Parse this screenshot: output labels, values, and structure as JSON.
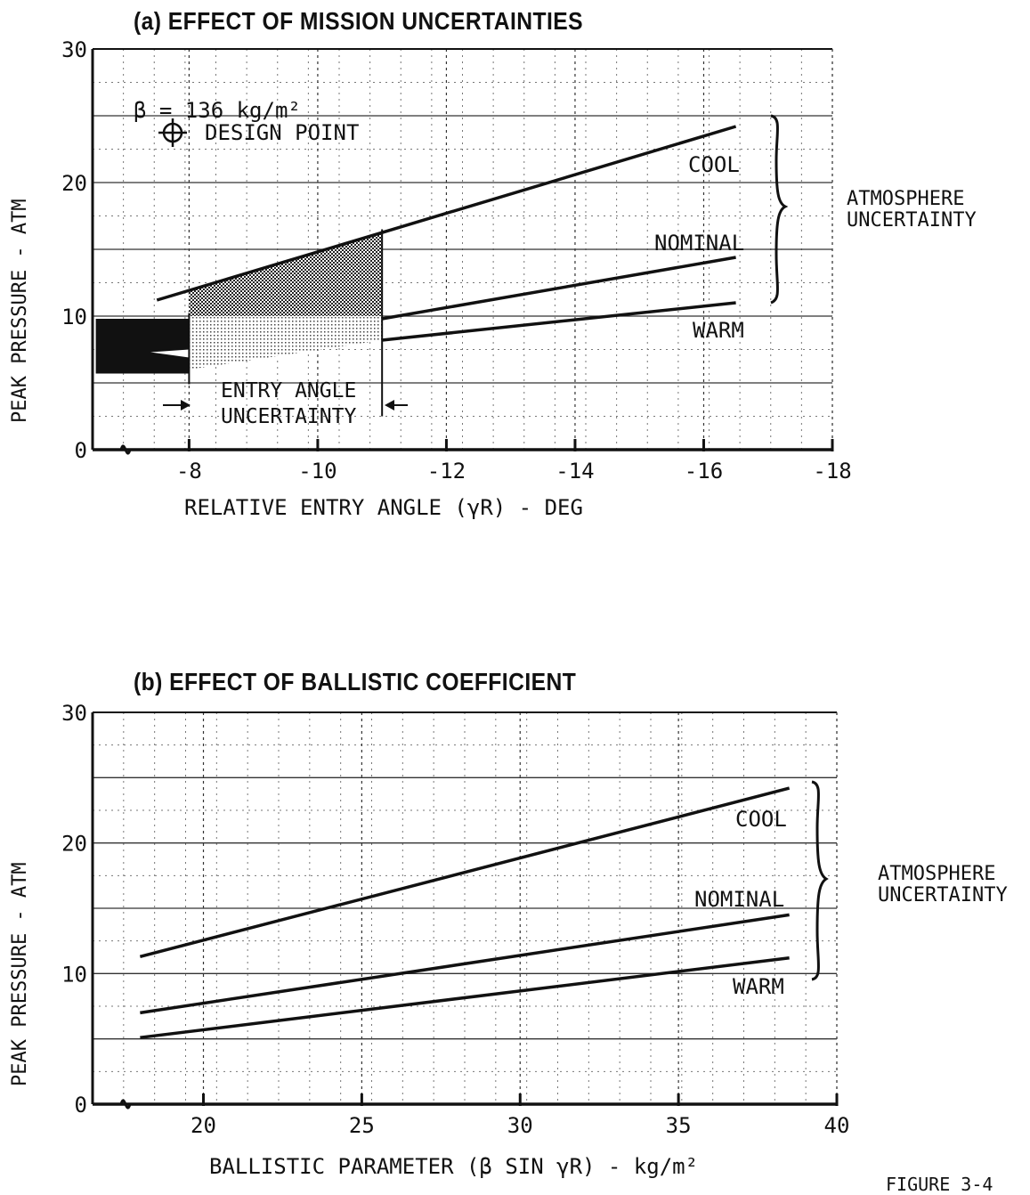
{
  "chart_data": [
    {
      "type": "line",
      "title": "(a) EFFECT OF MISSION UNCERTAINTIES",
      "xlabel": "RELATIVE ENTRY ANGLE (γR) - DEG",
      "ylabel": "PEAK PRESSURE - ATM",
      "xlim": [
        -6.5,
        -18
      ],
      "ylim": [
        0,
        30
      ],
      "xticks": [
        "-8",
        "-10",
        "-12",
        "-14",
        "-16",
        "-18"
      ],
      "yticks": [
        "0",
        "10",
        "20",
        "30"
      ],
      "grid": true,
      "series": [
        {
          "name": "COOL",
          "x": [
            -7.5,
            -16.5
          ],
          "y": [
            11.2,
            24.2
          ]
        },
        {
          "name": "NOMINAL",
          "x": [
            -11,
            -16.5
          ],
          "y": [
            9.8,
            14.4
          ]
        },
        {
          "name": "WARM",
          "x": [
            -11,
            -16.5
          ],
          "y": [
            8.2,
            11.0
          ]
        }
      ],
      "annotations": {
        "beta": "β = 136 kg/m²",
        "design_point": "DESIGN POINT",
        "entry_angle_uncertainty": [
          "ENTRY ANGLE",
          "UNCERTAINTY"
        ],
        "entry_angle_range": [
          -8,
          -11
        ],
        "atmosphere_uncertainty": [
          "ATMOSPHERE",
          "UNCERTAINTY"
        ]
      }
    },
    {
      "type": "line",
      "title": "(b) EFFECT OF BALLISTIC COEFFICIENT",
      "xlabel": "BALLISTIC PARAMETER (β SIN γR) - kg/m²",
      "ylabel": "PEAK PRESSURE - ATM",
      "xlim": [
        16.5,
        40
      ],
      "ylim": [
        0,
        30
      ],
      "xticks": [
        "20",
        "25",
        "30",
        "35",
        "40"
      ],
      "yticks": [
        "0",
        "10",
        "20",
        "30"
      ],
      "grid": true,
      "series": [
        {
          "name": "COOL",
          "x": [
            18,
            38.5
          ],
          "y": [
            11.3,
            24.2
          ]
        },
        {
          "name": "NOMINAL",
          "x": [
            18,
            38.5
          ],
          "y": [
            7.0,
            14.5
          ]
        },
        {
          "name": "WARM",
          "x": [
            18,
            38.5
          ],
          "y": [
            5.1,
            11.2
          ]
        }
      ],
      "annotations": {
        "atmosphere_uncertainty": [
          "ATMOSPHERE",
          "UNCERTAINTY"
        ]
      }
    }
  ],
  "footer": "FIGURE 3-4"
}
